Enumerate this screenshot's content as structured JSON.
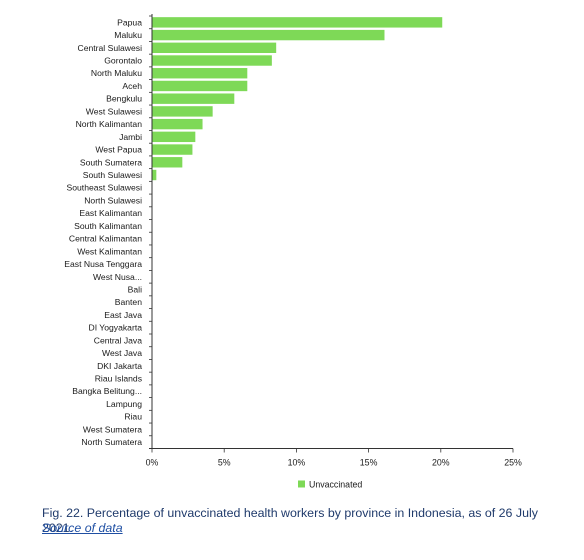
{
  "colors": {
    "bar": "#7ed957",
    "axis": "#333333",
    "text": "#1a1a1a"
  },
  "chart_data": {
    "type": "bar",
    "orientation": "horizontal",
    "categories": [
      "Papua",
      "Maluku",
      "Central Sulawesi",
      "Gorontalo",
      "North Maluku",
      "Aceh",
      "Bengkulu",
      "West Sulawesi",
      "North Kalimantan",
      "Jambi",
      "West Papua",
      "South Sumatera",
      "South Sulawesi",
      "Southeast Sulawesi",
      "North Sulawesi",
      "East Kalimantan",
      "South Kalimantan",
      "Central Kalimantan",
      "West Kalimantan",
      "East Nusa Tenggara",
      "West Nusa...",
      "Bali",
      "Banten",
      "East Java",
      "DI Yogyakarta",
      "Central Java",
      "West Java",
      "DKI Jakarta",
      "Riau Islands",
      "Bangka Belitung...",
      "Lampung",
      "Riau",
      "West Sumatera",
      "North Sumatera"
    ],
    "series": [
      {
        "name": "Unvaccinated",
        "values": [
          20.1,
          16.1,
          8.6,
          8.3,
          6.6,
          6.6,
          5.7,
          4.2,
          3.5,
          3.0,
          2.8,
          2.1,
          0.3,
          0,
          0,
          0,
          0,
          0,
          0,
          0,
          0,
          0,
          0,
          0,
          0,
          0,
          0,
          0,
          0,
          0,
          0,
          0,
          0,
          0
        ]
      }
    ],
    "xlim": [
      0,
      25
    ],
    "xticks": [
      0,
      5,
      10,
      15,
      20,
      25
    ],
    "xtick_labels": [
      "0%",
      "5%",
      "10%",
      "15%",
      "20%",
      "25%"
    ],
    "grid": false,
    "legend": "bottom",
    "title": "",
    "xlabel": "",
    "ylabel": ""
  },
  "caption": "Fig. 22. Percentage of unvaccinated health workers by province in Indonesia, as of 26 July 2021.",
  "source_link": "Source of data"
}
